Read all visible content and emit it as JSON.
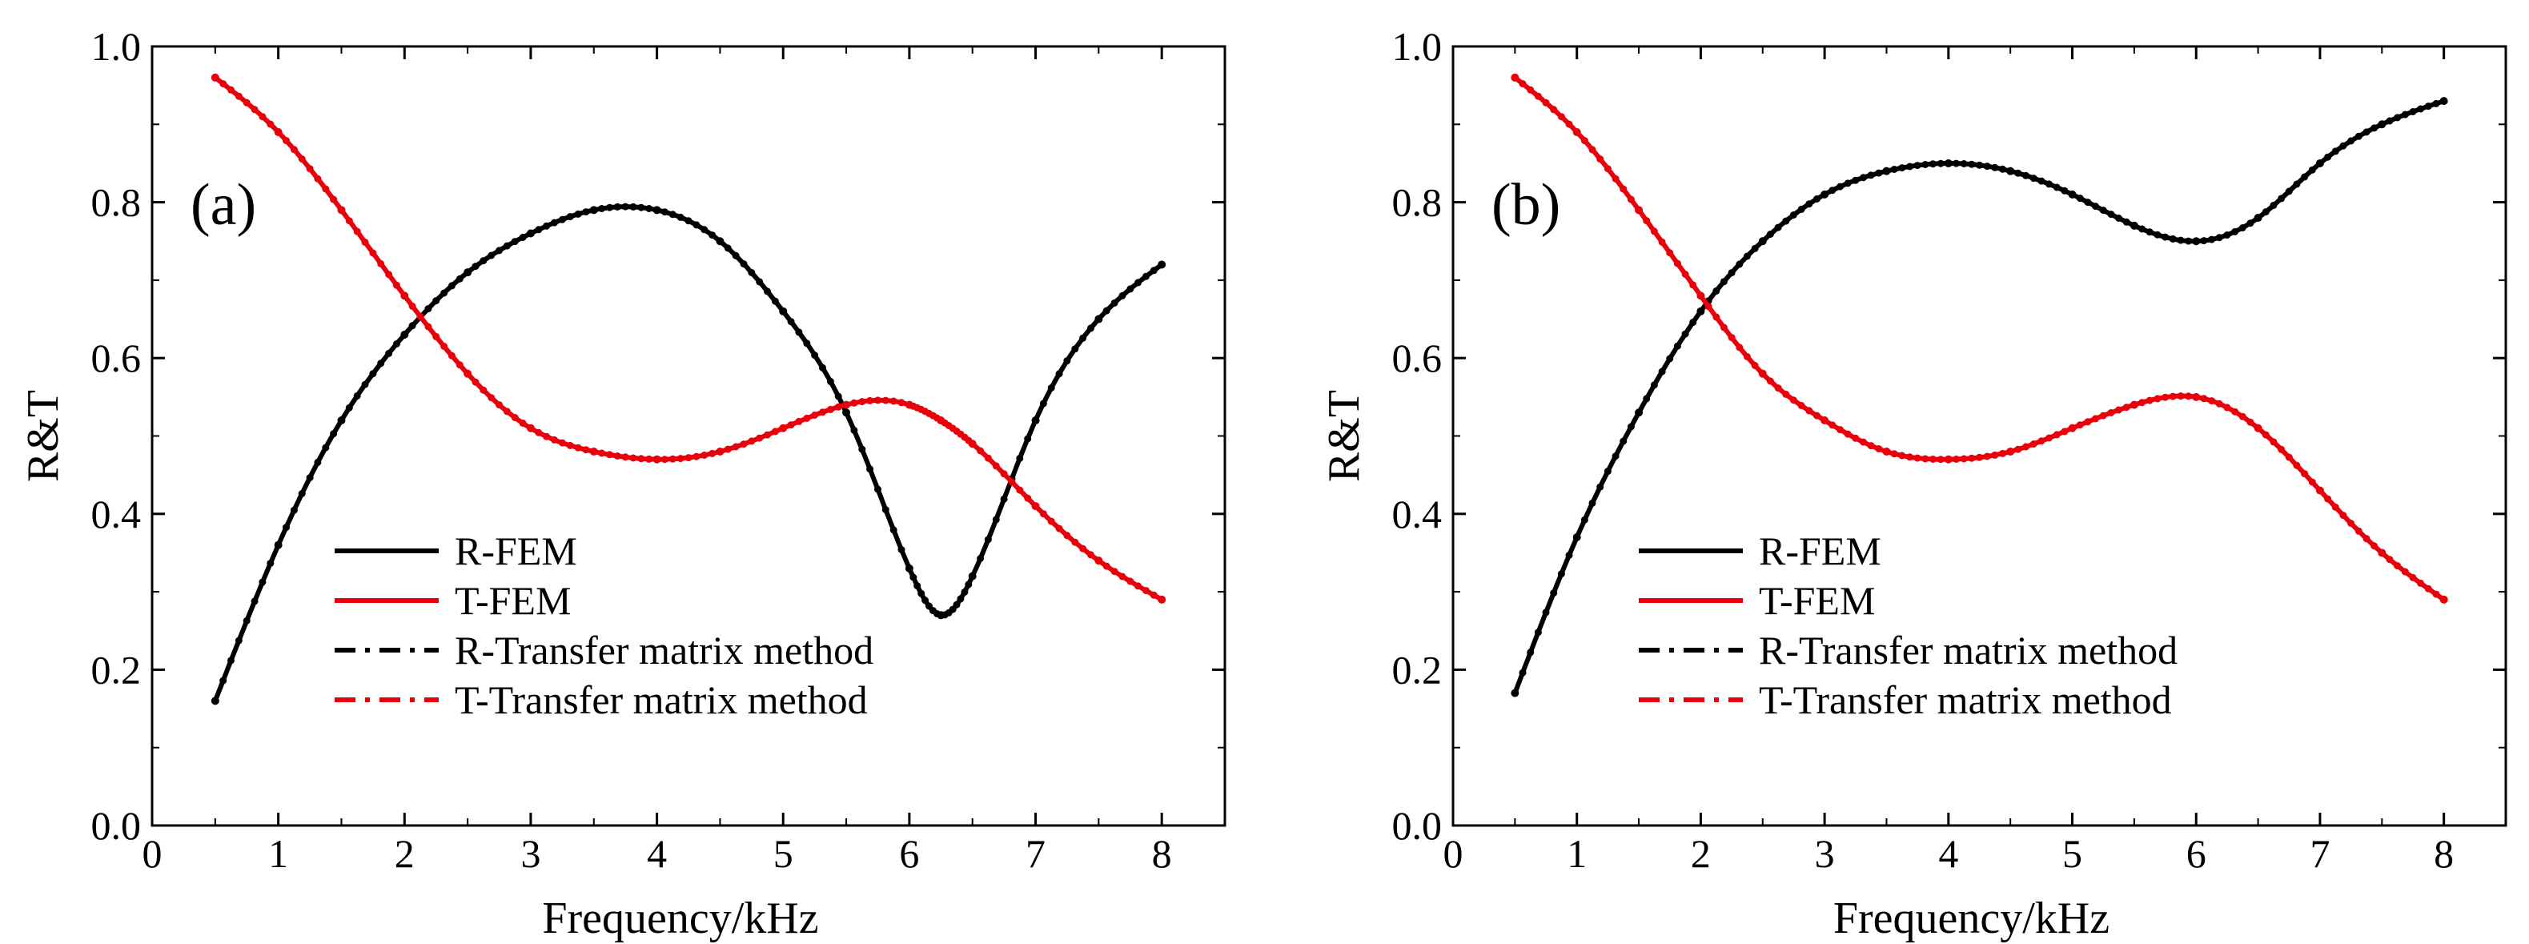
{
  "chart_data": [
    {
      "type": "line",
      "panel_label": "(a)",
      "xlabel": "Frequency/kHz",
      "ylabel": "R&T",
      "xlim": [
        0,
        8.5
      ],
      "ylim": [
        0,
        1.0
      ],
      "xticks": [
        0,
        1,
        2,
        3,
        4,
        5,
        6,
        7,
        8
      ],
      "yticks": [
        "0.0",
        "0.2",
        "0.4",
        "0.6",
        "0.8",
        "1.0"
      ],
      "grid": false,
      "legend_position": "bottom-center",
      "legend": [
        {
          "name": "R-FEM",
          "color": "#000000",
          "style": "solid"
        },
        {
          "name": "T-FEM",
          "color": "#e8000b",
          "style": "solid"
        },
        {
          "name": "R-Transfer matrix method",
          "color": "#000000",
          "style": "dashdot"
        },
        {
          "name": "T-Transfer matrix method",
          "color": "#e8000b",
          "style": "dashdot"
        }
      ],
      "x": [
        0.5,
        1,
        1.5,
        2,
        2.5,
        3,
        3.5,
        4,
        4.5,
        5,
        5.5,
        6,
        6.25,
        6.5,
        7,
        7.5,
        8
      ],
      "series": [
        {
          "name": "R-FEM",
          "color": "#000000",
          "values": [
            0.16,
            0.36,
            0.52,
            0.63,
            0.71,
            0.76,
            0.79,
            0.79,
            0.75,
            0.66,
            0.53,
            0.33,
            0.27,
            0.32,
            0.52,
            0.65,
            0.72
          ]
        },
        {
          "name": "T-FEM",
          "color": "#e8000b",
          "values": [
            0.96,
            0.89,
            0.79,
            0.68,
            0.58,
            0.51,
            0.48,
            0.47,
            0.48,
            0.51,
            0.54,
            0.54,
            0.52,
            0.49,
            0.41,
            0.34,
            0.29
          ]
        }
      ]
    },
    {
      "type": "line",
      "panel_label": "(b)",
      "xlabel": "Frequency/kHz",
      "ylabel": "R&T",
      "xlim": [
        0,
        8.5
      ],
      "ylim": [
        0,
        1.0
      ],
      "xticks": [
        0,
        1,
        2,
        3,
        4,
        5,
        6,
        7,
        8
      ],
      "yticks": [
        "0.0",
        "0.2",
        "0.4",
        "0.6",
        "0.8",
        "1.0"
      ],
      "grid": false,
      "legend_position": "bottom-center",
      "legend": [
        {
          "name": "R-FEM",
          "color": "#000000",
          "style": "solid"
        },
        {
          "name": "T-FEM",
          "color": "#e8000b",
          "style": "solid"
        },
        {
          "name": "R-Transfer matrix method",
          "color": "#000000",
          "style": "dashdot"
        },
        {
          "name": "T-Transfer matrix method",
          "color": "#e8000b",
          "style": "dashdot"
        }
      ],
      "x": [
        0.5,
        1,
        1.5,
        2,
        2.5,
        3,
        3.5,
        4,
        4.5,
        5,
        5.5,
        6,
        6.5,
        7,
        7.5,
        8
      ],
      "series": [
        {
          "name": "R-FEM",
          "color": "#000000",
          "values": [
            0.17,
            0.37,
            0.53,
            0.66,
            0.75,
            0.81,
            0.84,
            0.85,
            0.84,
            0.81,
            0.77,
            0.75,
            0.78,
            0.85,
            0.9,
            0.93
          ]
        },
        {
          "name": "T-FEM",
          "color": "#e8000b",
          "values": [
            0.96,
            0.89,
            0.79,
            0.68,
            0.58,
            0.52,
            0.48,
            0.47,
            0.48,
            0.51,
            0.54,
            0.55,
            0.51,
            0.43,
            0.35,
            0.29
          ]
        }
      ]
    }
  ]
}
